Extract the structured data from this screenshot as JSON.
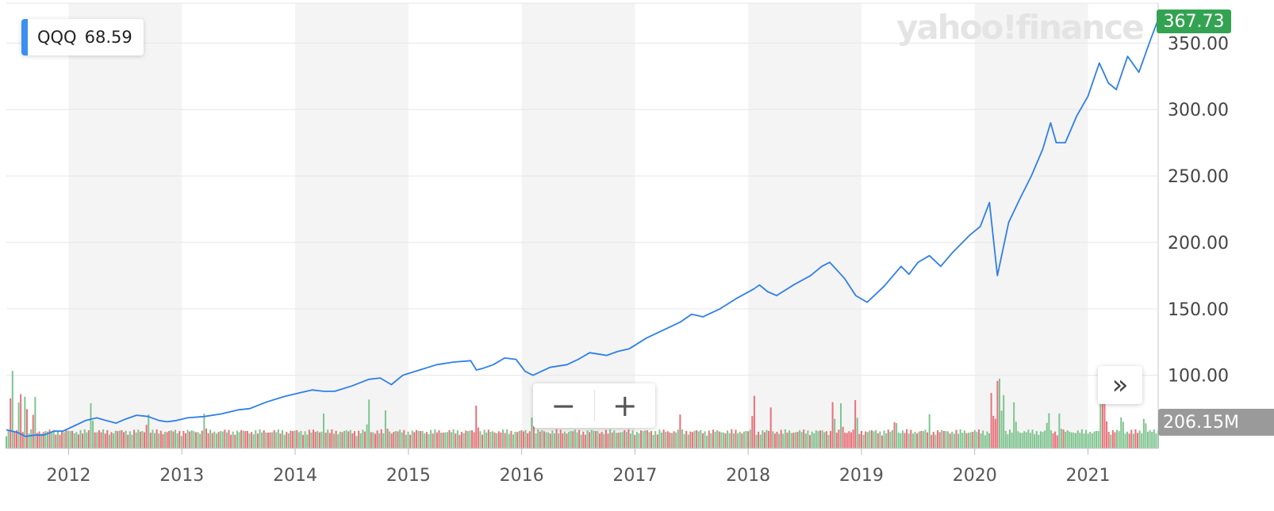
{
  "legend": {
    "symbol": "QQQ",
    "value": "68.59",
    "color": "#3a8ff0"
  },
  "watermark": "yahoo!finance",
  "price_tag": {
    "value": "367.73",
    "color": "#33a352"
  },
  "volume_tag": {
    "value": "206.15M",
    "color": "#9a9a9a"
  },
  "controls": {
    "zoom_out": "−",
    "zoom_in": "+",
    "scroll_right": "»"
  },
  "chart_data": {
    "type": "line",
    "title": "",
    "xlabel": "",
    "ylabel": "",
    "x_range": [
      2011.45,
      2021.62
    ],
    "ylim": [
      45,
      380
    ],
    "y_ticks": [
      "100.00",
      "150.00",
      "200.00",
      "250.00",
      "300.00",
      "350.00"
    ],
    "y_tick_values": [
      100,
      150,
      200,
      250,
      300,
      350
    ],
    "x_ticks": [
      "2012",
      "2013",
      "2014",
      "2015",
      "2016",
      "2017",
      "2018",
      "2019",
      "2020",
      "2021"
    ],
    "x_tick_values": [
      2012,
      2013,
      2014,
      2015,
      2016,
      2017,
      2018,
      2019,
      2020,
      2021
    ],
    "grid": true,
    "line_color": "#2f7fe6",
    "volume_colors": {
      "up": "#7fc48f",
      "down": "#e8707a"
    },
    "series": [
      {
        "name": "QQQ",
        "x": [
          2011.45,
          2011.55,
          2011.62,
          2011.7,
          2011.78,
          2011.87,
          2011.95,
          2012.05,
          2012.15,
          2012.25,
          2012.33,
          2012.42,
          2012.5,
          2012.6,
          2012.7,
          2012.8,
          2012.87,
          2012.95,
          2013.05,
          2013.2,
          2013.35,
          2013.5,
          2013.6,
          2013.75,
          2013.9,
          2014.05,
          2014.15,
          2014.25,
          2014.35,
          2014.5,
          2014.65,
          2014.75,
          2014.85,
          2014.95,
          2015.1,
          2015.25,
          2015.4,
          2015.55,
          2015.6,
          2015.65,
          2015.75,
          2015.85,
          2015.95,
          2016.03,
          2016.1,
          2016.25,
          2016.4,
          2016.5,
          2016.6,
          2016.75,
          2016.85,
          2016.95,
          2017.1,
          2017.25,
          2017.4,
          2017.5,
          2017.6,
          2017.75,
          2017.9,
          2018.05,
          2018.1,
          2018.17,
          2018.25,
          2018.4,
          2018.55,
          2018.65,
          2018.72,
          2018.85,
          2018.95,
          2019.05,
          2019.2,
          2019.35,
          2019.42,
          2019.5,
          2019.6,
          2019.7,
          2019.8,
          2019.95,
          2020.05,
          2020.13,
          2020.2,
          2020.3,
          2020.4,
          2020.5,
          2020.6,
          2020.67,
          2020.72,
          2020.8,
          2020.9,
          2021.0,
          2021.1,
          2021.18,
          2021.25,
          2021.35,
          2021.45,
          2021.55,
          2021.62
        ],
        "y": [
          59,
          57,
          54,
          55,
          55,
          58,
          58,
          62,
          66,
          68,
          66,
          64,
          67,
          70,
          69,
          66,
          65,
          66,
          68,
          69,
          71,
          74,
          75,
          80,
          84,
          87,
          89,
          88,
          88,
          92,
          97,
          98,
          93,
          100,
          104,
          108,
          110,
          111,
          104,
          105,
          108,
          113,
          112,
          103,
          100,
          106,
          108,
          112,
          117,
          115,
          118,
          120,
          128,
          134,
          140,
          146,
          144,
          150,
          158,
          165,
          168,
          163,
          160,
          168,
          175,
          182,
          185,
          173,
          160,
          155,
          167,
          182,
          176,
          185,
          190,
          182,
          192,
          205,
          212,
          230,
          175,
          215,
          233,
          250,
          270,
          290,
          275,
          275,
          295,
          310,
          335,
          320,
          315,
          340,
          328,
          352,
          367.73
        ]
      }
    ],
    "volume_series": {
      "name": "Volume",
      "x": [
        2011.5,
        2011.57,
        2011.62,
        2011.7,
        2012.2,
        2012.7,
        2013.2,
        2014.25,
        2014.65,
        2014.8,
        2015.6,
        2016.1,
        2017.4,
        2018.05,
        2018.2,
        2018.75,
        2018.82,
        2018.95,
        2019.3,
        2019.6,
        2020.15,
        2020.2,
        2020.22,
        2020.25,
        2020.35,
        2020.65,
        2020.75,
        2021.12,
        2021.15,
        2021.3,
        2021.5
      ],
      "values": [
        210,
        165,
        150,
        140,
        120,
        95,
        90,
        85,
        120,
        95,
        105,
        110,
        80,
        140,
        95,
        125,
        110,
        130,
        85,
        80,
        145,
        160,
        165,
        150,
        120,
        100,
        90,
        160,
        125,
        95,
        90
      ]
    }
  }
}
